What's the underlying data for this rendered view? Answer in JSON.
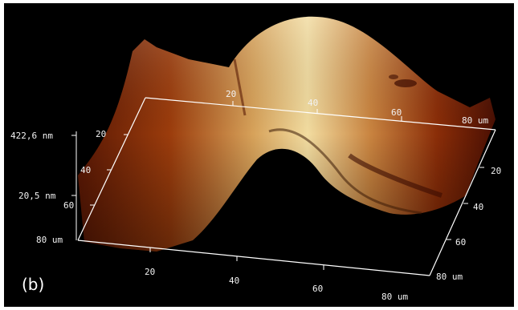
{
  "figure": {
    "panel_label": "(b)",
    "scan_axis_x": {
      "ticks": [
        "20",
        "40",
        "60",
        "80 um"
      ]
    },
    "scan_axis_y": {
      "ticks": [
        "20",
        "40",
        "60",
        "80 um"
      ]
    },
    "back_axis_x": {
      "ticks": [
        "20",
        "40",
        "60",
        "80 um"
      ]
    },
    "back_axis_y": {
      "ticks": [
        "20",
        "40",
        "60"
      ]
    },
    "height_axis": {
      "ticks": [
        "422,6 nm",
        "20,5 nm",
        "80 um"
      ]
    }
  },
  "colors": {
    "background": "#000000",
    "surface_low": "#4a0f02",
    "surface_mid": "#a4400a",
    "surface_high": "#f5e0a6",
    "axis_line": "#ffffff"
  }
}
